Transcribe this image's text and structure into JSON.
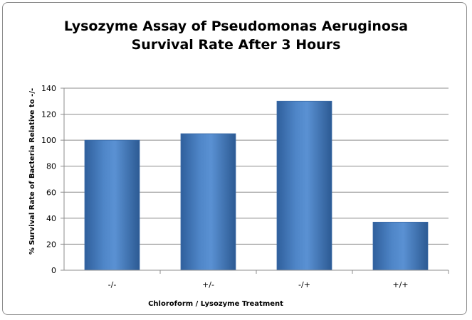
{
  "chart_data": {
    "type": "bar",
    "title": "Lysozyme Assay of Pseudomonas Aeruginosa",
    "subtitle": "Survival Rate After 3 Hours",
    "xlabel": "Chloroform  /  Lysozyme Treatment",
    "ylabel": "% Survival Rate of Bacteria Relative to -/-",
    "categories": [
      "-/-",
      "+/-",
      "-/+",
      "+/+"
    ],
    "values": [
      100,
      105,
      130,
      37
    ],
    "ylim": [
      0,
      140
    ],
    "yticks": [
      "0",
      "20",
      "40",
      "60",
      "80",
      "100",
      "120",
      "140"
    ],
    "grid": true,
    "legend": "none",
    "bar_color": "#4a7ebb"
  }
}
